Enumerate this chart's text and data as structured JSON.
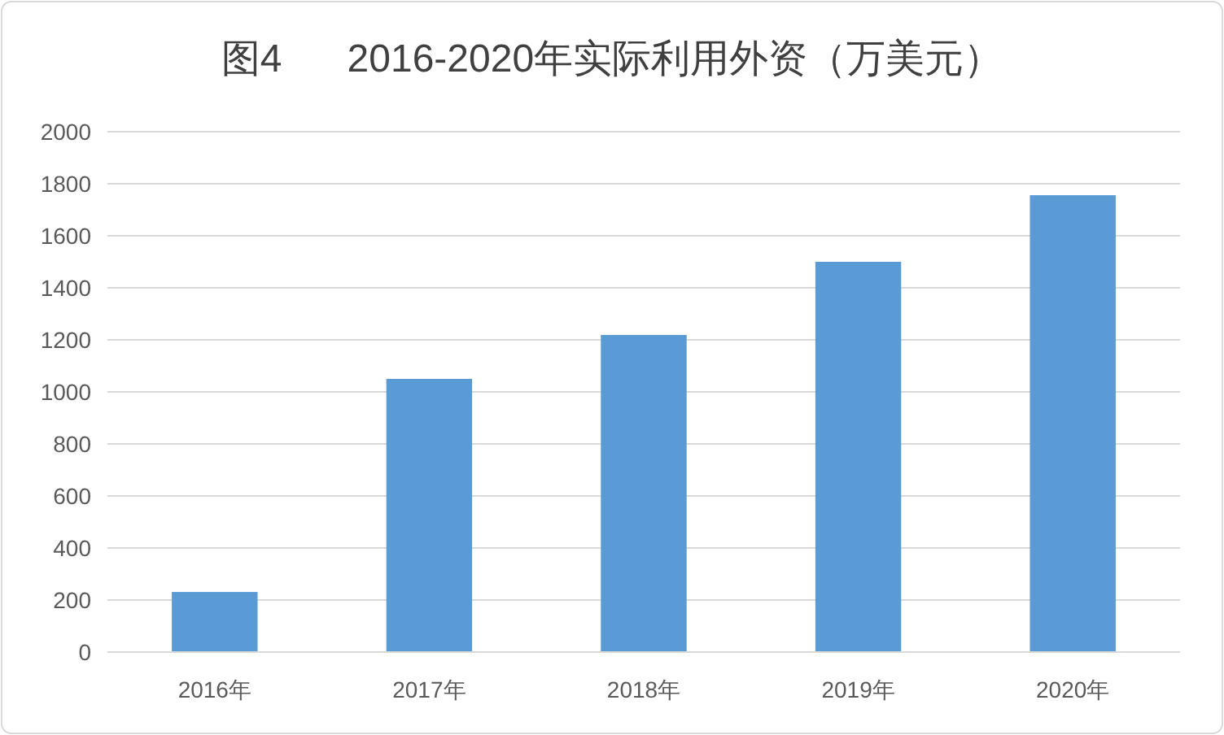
{
  "chart_data": {
    "type": "bar",
    "title": "图4      2016-2020年实际利用外资（万美元）",
    "categories": [
      "2016年",
      "2017年",
      "2018年",
      "2019年",
      "2020年"
    ],
    "values": [
      231,
      1050,
      1219,
      1500,
      1756
    ],
    "color": "#5b9bd5",
    "ylim": [
      0,
      2000
    ],
    "yticks": [
      0,
      200,
      400,
      600,
      800,
      1000,
      1200,
      1400,
      1600,
      1800,
      2000
    ],
    "grid": "y"
  }
}
